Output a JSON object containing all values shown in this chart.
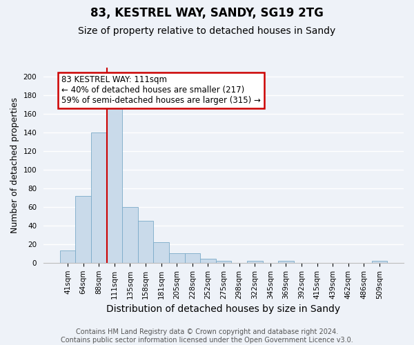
{
  "title": "83, KESTREL WAY, SANDY, SG19 2TG",
  "subtitle": "Size of property relative to detached houses in Sandy",
  "xlabel": "Distribution of detached houses by size in Sandy",
  "ylabel": "Number of detached properties",
  "categories": [
    "41sqm",
    "64sqm",
    "88sqm",
    "111sqm",
    "135sqm",
    "158sqm",
    "181sqm",
    "205sqm",
    "228sqm",
    "252sqm",
    "275sqm",
    "298sqm",
    "322sqm",
    "345sqm",
    "369sqm",
    "392sqm",
    "415sqm",
    "439sqm",
    "462sqm",
    "486sqm",
    "509sqm"
  ],
  "values": [
    13,
    72,
    140,
    168,
    60,
    45,
    22,
    10,
    10,
    4,
    2,
    0,
    2,
    0,
    2,
    0,
    0,
    0,
    0,
    0,
    2
  ],
  "bar_color": "#c9daea",
  "bar_edge_color": "#7aaac8",
  "red_line_index": 3,
  "annotation_line1": "83 KESTREL WAY: 111sqm",
  "annotation_line2": "← 40% of detached houses are smaller (217)",
  "annotation_line3": "59% of semi-detached houses are larger (315) →",
  "annotation_box_facecolor": "#ffffff",
  "annotation_box_edgecolor": "#cc0000",
  "ylim": [
    0,
    210
  ],
  "yticks": [
    0,
    20,
    40,
    60,
    80,
    100,
    120,
    140,
    160,
    180,
    200
  ],
  "footer_text": "Contains HM Land Registry data © Crown copyright and database right 2024.\nContains public sector information licensed under the Open Government Licence v3.0.",
  "background_color": "#eef2f8",
  "grid_color": "#ffffff",
  "title_fontsize": 12,
  "subtitle_fontsize": 10,
  "tick_fontsize": 7.5,
  "xlabel_fontsize": 10,
  "ylabel_fontsize": 9,
  "footer_fontsize": 7
}
